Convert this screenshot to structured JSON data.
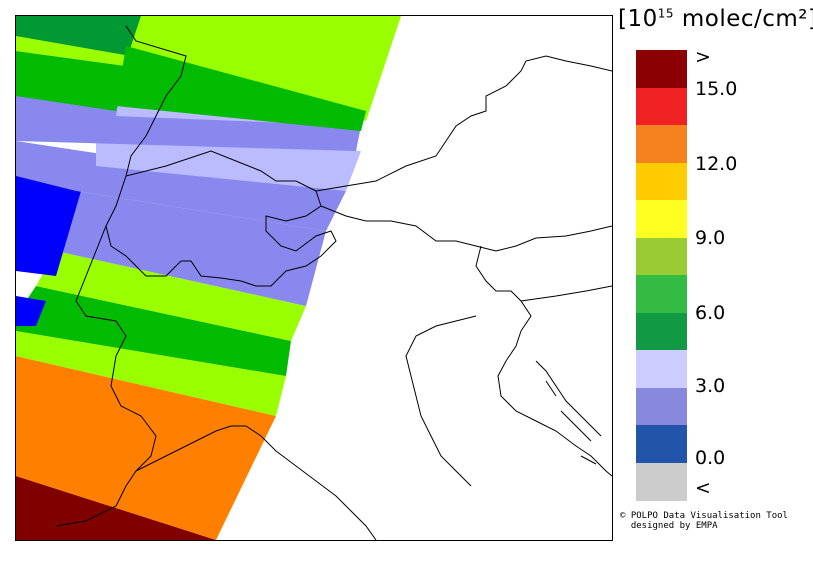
{
  "legend": {
    "title_prefix": "[10",
    "title_exp": "15",
    "title_suffix": " molec/cm²]",
    "labels": [
      ">",
      "15.0",
      "12.0",
      "9.0",
      "6.0",
      "3.0",
      "0.0",
      "<"
    ],
    "colors": [
      "#8b0000",
      "#ee2222",
      "#f5821f",
      "#ffcc00",
      "#ffff22",
      "#99cc33",
      "#33bb44",
      "#119944",
      "#ccccff",
      "#8888dd",
      "#2255aa",
      "#cccccc"
    ]
  },
  "credit": {
    "line1": "© POLPO Data Visualisation Tool",
    "line2": "  designed by EMPA"
  },
  "map": {
    "swath_colors": {
      "dark_red": "#800000",
      "orange": "#ff8000",
      "light_green": "#99ff00",
      "green": "#00bb00",
      "dark_green": "#009933",
      "lavender": "#bbbbff",
      "periwinkle": "#8888ee",
      "blue": "#0000ff"
    }
  }
}
